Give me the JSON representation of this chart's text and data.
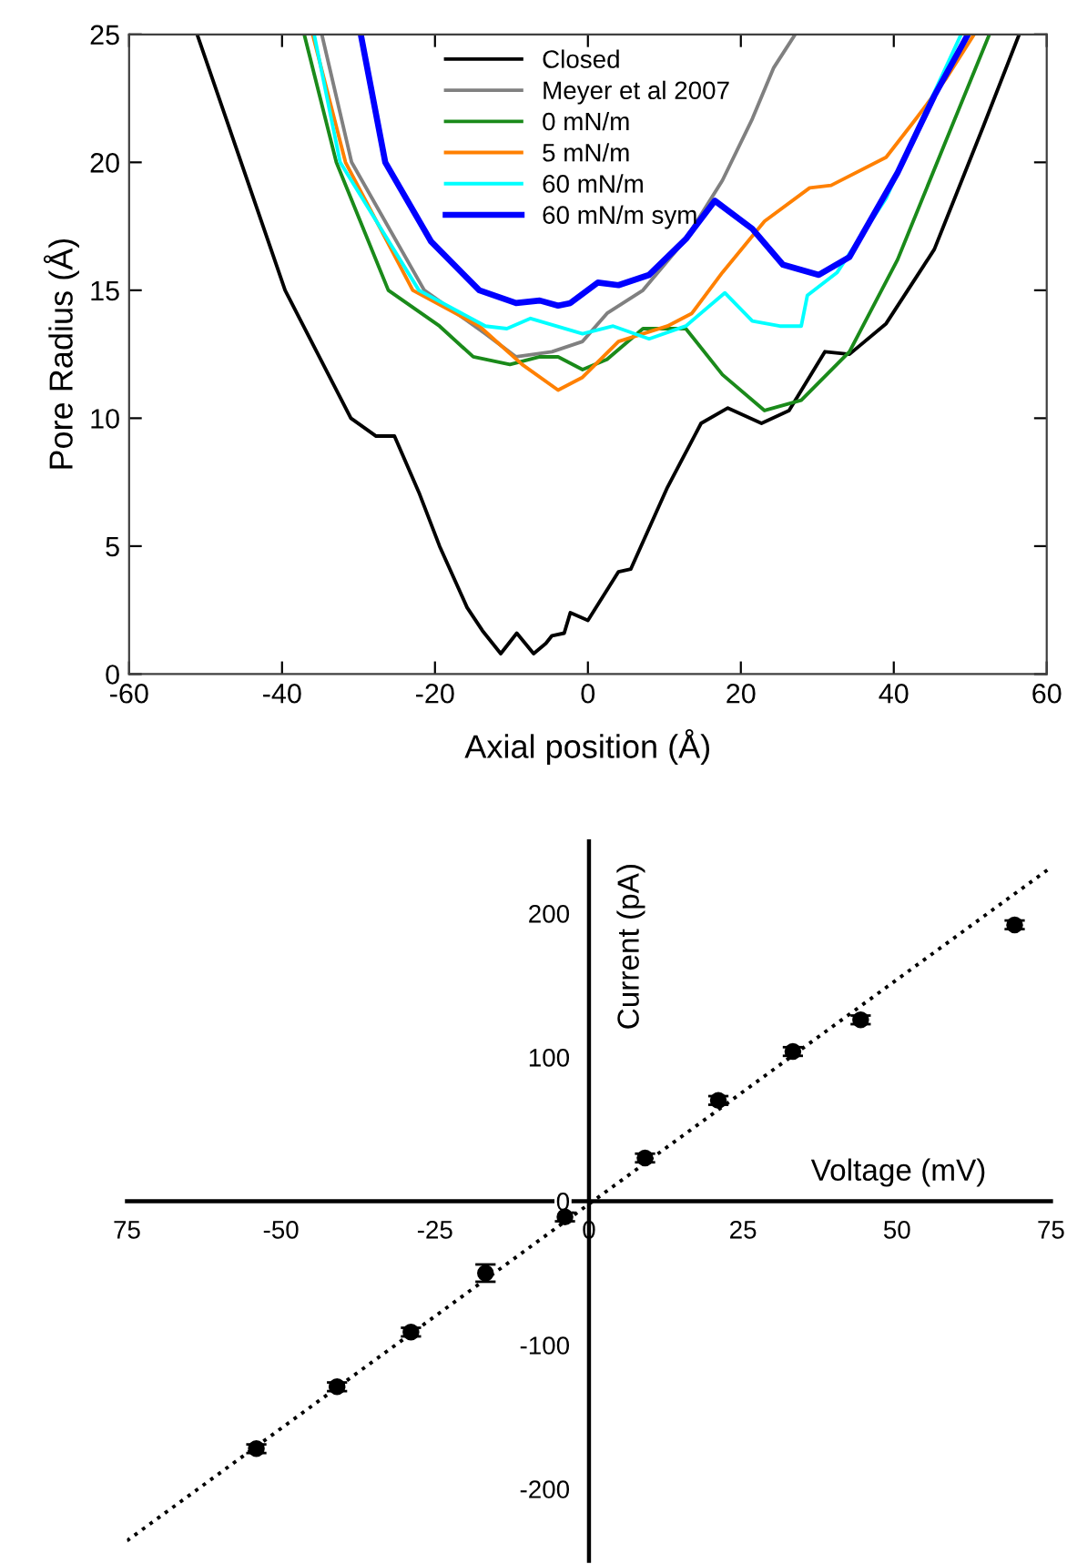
{
  "chart_data": [
    {
      "type": "line",
      "xlabel": "Axial position (Å)",
      "ylabel": "Pore Radius (Å)",
      "xlim": [
        -60,
        60
      ],
      "ylim": [
        0,
        25
      ],
      "xticks": [
        -60,
        -40,
        -20,
        0,
        20,
        40,
        60
      ],
      "yticks": [
        0,
        5,
        10,
        15,
        20,
        25
      ],
      "legend": "top center",
      "grid": false,
      "series": [
        {
          "name": "Closed",
          "color": "#000000",
          "x": [
            -51.1,
            -39.6,
            -31.0,
            -27.7,
            -25.3,
            -22.1,
            -19.4,
            -15.8,
            -13.8,
            -11.4,
            -9.3,
            -7.1,
            -5.5,
            -4.7,
            -3.1,
            -2.3,
            0.0,
            4.0,
            5.6,
            10.4,
            14.8,
            18.3,
            22.7,
            26.3,
            31.0,
            34.2,
            39.0,
            45.3,
            51.7,
            56.4
          ],
          "values": [
            25,
            15,
            10,
            9.3,
            9.3,
            7.1,
            5,
            2.6,
            1.7,
            0.8,
            1.6,
            0.8,
            1.2,
            1.5,
            1.6,
            2.4,
            2.1,
            4.0,
            4.1,
            7.3,
            9.8,
            10.4,
            9.8,
            10.3,
            12.6,
            12.5,
            13.7,
            16.6,
            21.4,
            25
          ]
        },
        {
          "name": "Meyer et al 2007",
          "color": "#808080",
          "x": [
            -34.8,
            -30.9,
            -21.4,
            -13.4,
            -9.4,
            -4.7,
            -0.7,
            2.5,
            7.2,
            12.8,
            17.6,
            21.5,
            24.3,
            27.1
          ],
          "values": [
            25,
            20,
            15,
            13.3,
            12.4,
            12.6,
            13.0,
            14.1,
            15,
            17.0,
            19.3,
            21.7,
            23.7,
            25
          ]
        },
        {
          "name": "0 mN/m",
          "color": "#1a8a1a",
          "x": [
            -37.1,
            -32.9,
            -26.1,
            -19.4,
            -15.0,
            -10.2,
            -6.3,
            -3.9,
            -0.7,
            2.5,
            7.2,
            12.8,
            17.6,
            23.1,
            27.9,
            34.2,
            40.5,
            46.9,
            52.5
          ],
          "values": [
            25,
            20,
            15,
            13.6,
            12.4,
            12.1,
            12.4,
            12.4,
            11.9,
            12.3,
            13.5,
            13.5,
            11.7,
            10.3,
            10.7,
            12.6,
            16.2,
            20.9,
            25
          ]
        },
        {
          "name": "5 mN/m",
          "color": "#ff8000",
          "x": [
            -36.0,
            -31.7,
            -22.9,
            -14.2,
            -8.6,
            -3.9,
            -0.7,
            4.0,
            10.4,
            13.6,
            17.6,
            23.1,
            29.0,
            31.8,
            39.0,
            42.9,
            46.9,
            50.5
          ],
          "values": [
            25,
            20,
            15,
            13.6,
            12.1,
            11.1,
            11.6,
            13.0,
            13.6,
            14.1,
            15.7,
            17.7,
            19.0,
            19.1,
            20.2,
            21.7,
            23.3,
            25
          ]
        },
        {
          "name": "60 mN/m",
          "color": "#00ffff",
          "x": [
            -35.8,
            -32.4,
            -22.1,
            -13.4,
            -10.6,
            -7.5,
            -0.7,
            3.3,
            8.0,
            12.8,
            17.9,
            21.5,
            25.1,
            27.9,
            28.7,
            32.6,
            39.0,
            43.7,
            48.8
          ],
          "values": [
            25,
            20,
            15,
            13.6,
            13.5,
            13.9,
            13.3,
            13.6,
            13.1,
            13.6,
            14.9,
            13.8,
            13.6,
            13.6,
            14.8,
            15.7,
            18.6,
            21.7,
            25
          ]
        },
        {
          "name": "60 mN/m sym",
          "color": "#0000ff",
          "x": [
            -29.7,
            -26.5,
            -20.5,
            -14.2,
            -9.4,
            -6.3,
            -3.9,
            -2.3,
            1.3,
            4.0,
            8.0,
            12.8,
            16.6,
            21.5,
            25.5,
            30.2,
            34.2,
            40.5,
            45.3,
            49.7
          ],
          "values": [
            25,
            20,
            16.9,
            15,
            14.5,
            14.6,
            14.4,
            14.5,
            15.3,
            15.2,
            15.6,
            17.0,
            18.5,
            17.4,
            16.0,
            15.6,
            16.3,
            19.6,
            22.6,
            25
          ]
        }
      ]
    },
    {
      "type": "scatter",
      "xlabel": "Voltage (mV)",
      "ylabel": "Current (pA)",
      "xlim": [
        -75,
        75
      ],
      "ylim": [
        -250,
        250
      ],
      "xticks": [
        {
          "value": -75,
          "label": "75"
        },
        -50,
        -25,
        0,
        25,
        50,
        75
      ],
      "yticks": [
        -200,
        -100,
        0,
        100,
        200
      ],
      "legend": false,
      "grid": false,
      "series": [
        {
          "type": "scatter",
          "color": "#000000",
          "marker": "circle",
          "x": [
            -54.0,
            -40.9,
            -28.9,
            -16.8,
            -3.9,
            9.1,
            21.0,
            33.1,
            44.1,
            69.1
          ],
          "values": [
            -172,
            -129,
            -91,
            -50,
            -11,
            30,
            70,
            104,
            126,
            192
          ],
          "errors": [
            3,
            3,
            3,
            6,
            3,
            3,
            3,
            3,
            3,
            3
          ]
        },
        {
          "type": "line",
          "color": "#000000",
          "line_style": "dotted",
          "marker": "none",
          "x": [
            -75,
            75
          ],
          "values": [
            -236,
            232
          ]
        }
      ]
    }
  ]
}
